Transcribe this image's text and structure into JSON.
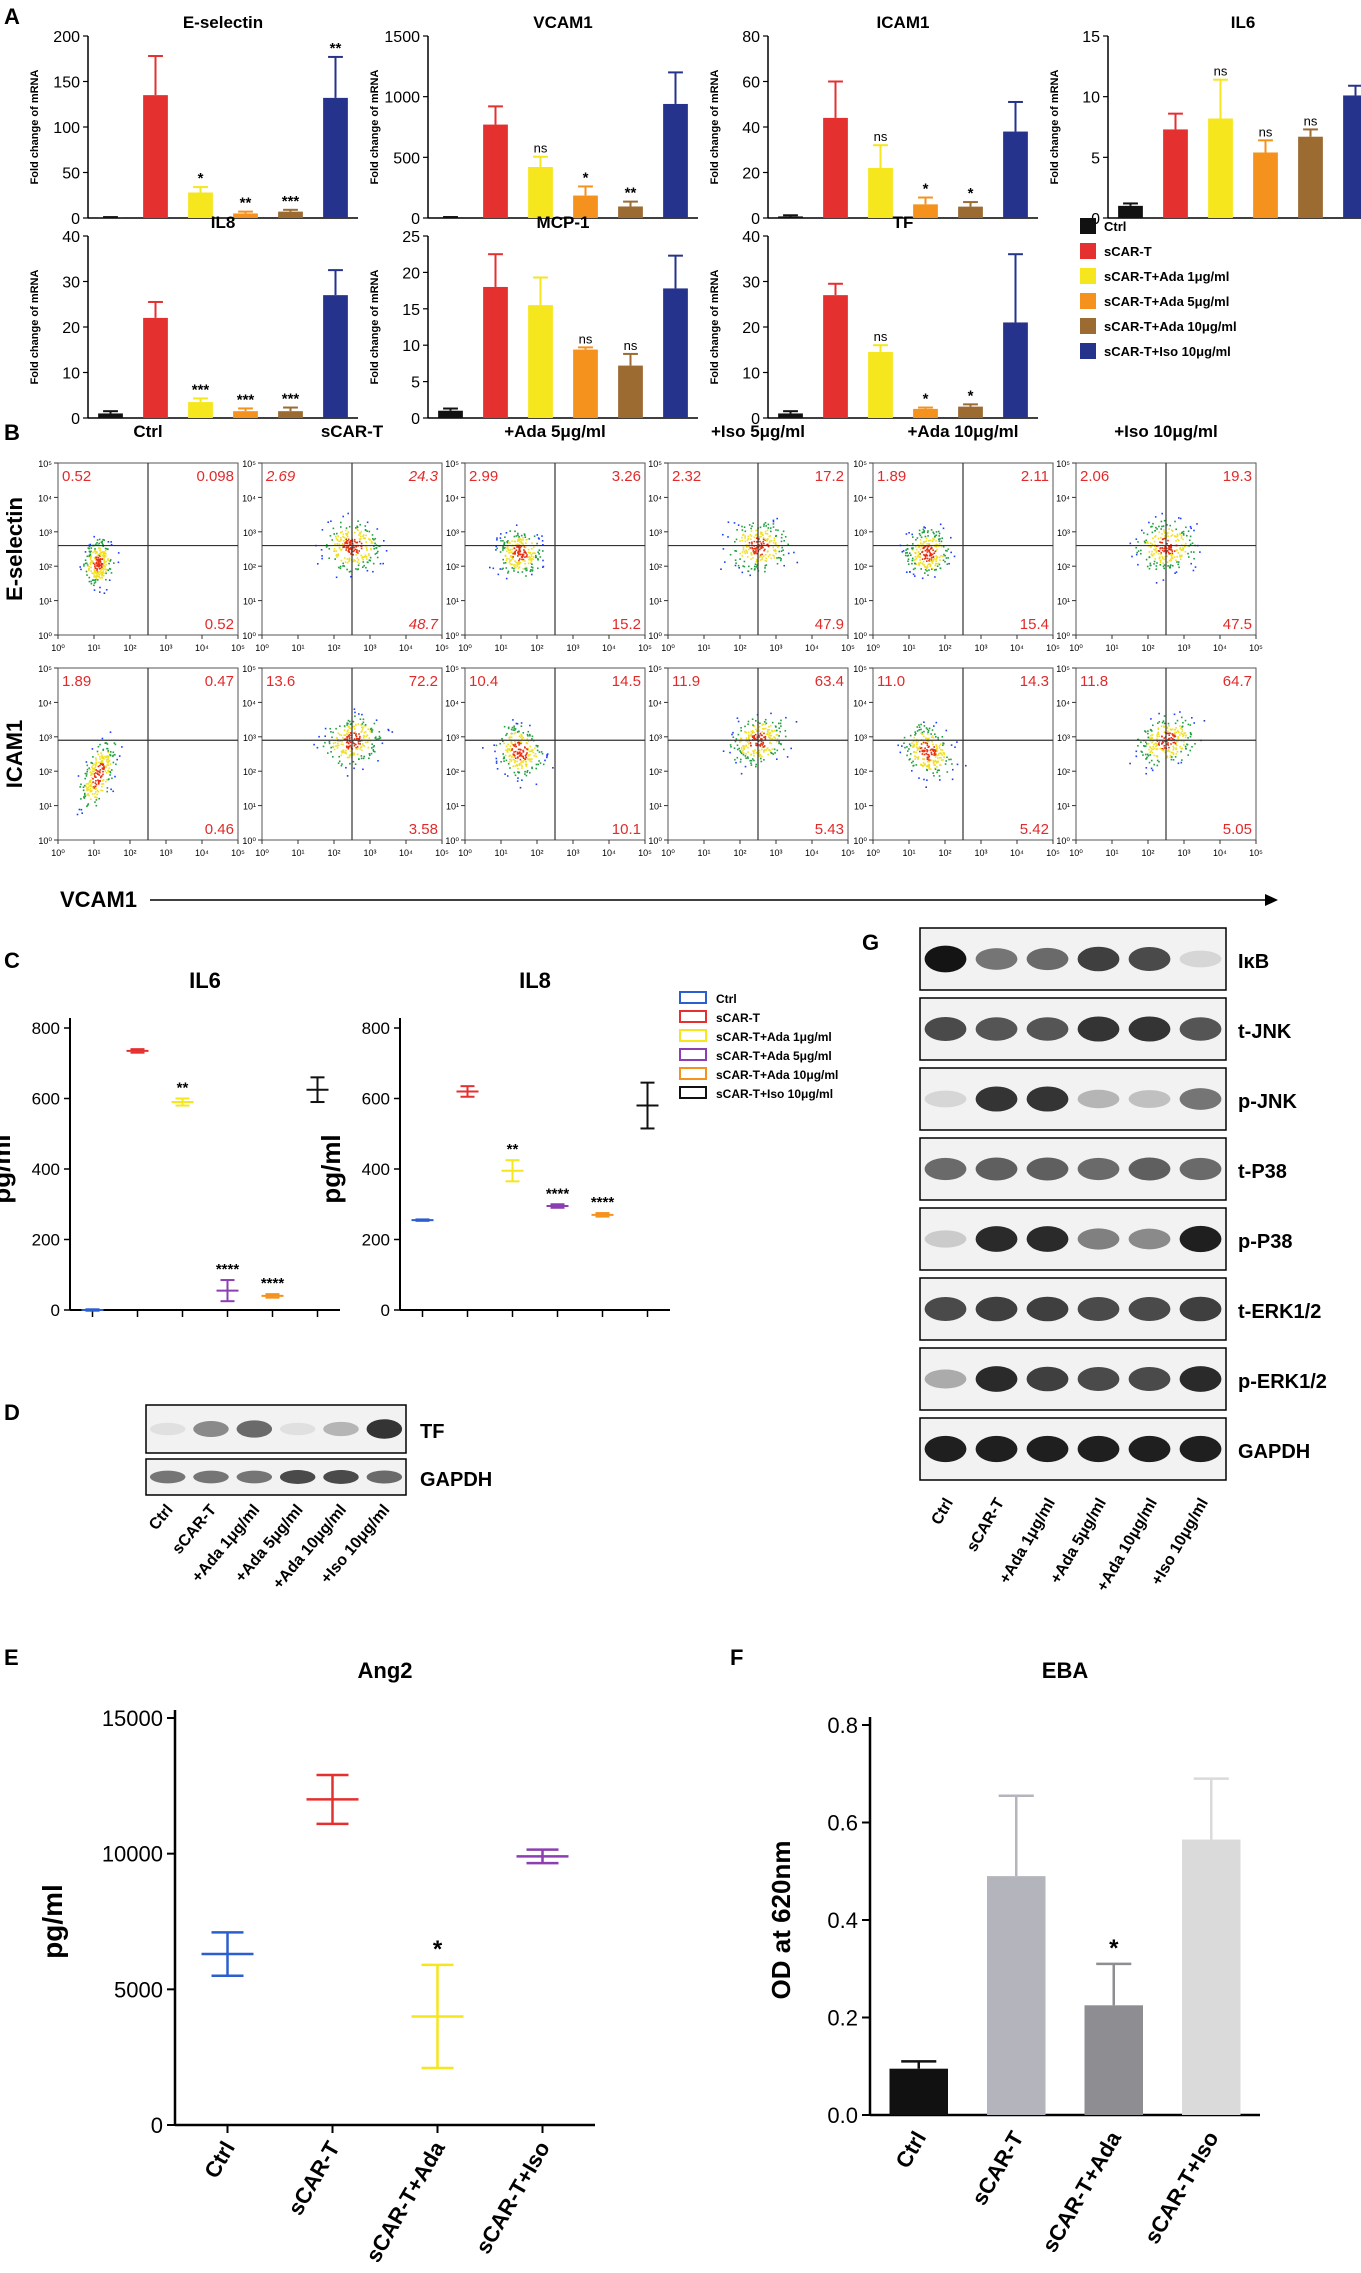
{
  "colors": {
    "ctrl": "#111111",
    "scar": "#e53030",
    "ada1": "#f5e61d",
    "ada5": "#f5921e",
    "ada10": "#9c6b32",
    "iso": "#26338c",
    "red_text": "#e12a2a"
  },
  "panel_labels": {
    "a": "A",
    "b": "B",
    "c": "C",
    "d": "D",
    "e": "E",
    "f": "F",
    "g": "G"
  },
  "panel_a": {
    "ylabel": "Fold change of mRNA",
    "groups": [
      "Ctrl",
      "sCAR-T",
      "sCAR-T+Ada 1μg/ml",
      "sCAR-T+Ada 5μg/ml",
      "sCAR-T+Ada 10μg/ml",
      "sCAR-T+Iso 10μg/ml"
    ],
    "charts": [
      {
        "title": "E-selectin",
        "ymax": 200,
        "ticks": [
          "0",
          "50",
          "100",
          "150",
          "200"
        ],
        "values": [
          0.5,
          135,
          28,
          5,
          7,
          132
        ],
        "errors": [
          0.5,
          43,
          6,
          2,
          2,
          45
        ],
        "sig": [
          "",
          "",
          "*",
          "**",
          "***",
          "**"
        ]
      },
      {
        "title": "VCAM1",
        "ymax": 1500,
        "ticks": [
          "0",
          "500",
          "1000",
          "1500"
        ],
        "values": [
          5,
          770,
          420,
          185,
          95,
          940
        ],
        "errors": [
          3,
          150,
          85,
          75,
          40,
          260
        ],
        "sig": [
          "",
          "",
          "ns",
          "*",
          "**",
          ""
        ]
      },
      {
        "title": "ICAM1",
        "ymax": 80,
        "ticks": [
          "0",
          "20",
          "40",
          "60",
          "80"
        ],
        "values": [
          0.7,
          44,
          22,
          6,
          5,
          38
        ],
        "errors": [
          0.5,
          16,
          10,
          3,
          2,
          13
        ],
        "sig": [
          "",
          "",
          "ns",
          "*",
          "*",
          ""
        ]
      },
      {
        "title": "IL6",
        "ymax": 15,
        "ticks": [
          "0",
          "5",
          "10",
          "15"
        ],
        "values": [
          1,
          7.3,
          8.2,
          5.4,
          6.7,
          10.1
        ],
        "errors": [
          0.2,
          1.3,
          3.2,
          1,
          0.6,
          0.8
        ],
        "sig": [
          "",
          "",
          "ns",
          "ns",
          "ns",
          ""
        ]
      },
      {
        "title": "IL8",
        "ymax": 40,
        "ticks": [
          "0",
          "10",
          "20",
          "30",
          "40"
        ],
        "values": [
          1,
          22,
          3.5,
          1.5,
          1.5,
          27
        ],
        "errors": [
          0.5,
          3.5,
          0.8,
          0.6,
          0.8,
          5.5
        ],
        "sig": [
          "",
          "",
          "***",
          "***",
          "***",
          ""
        ]
      },
      {
        "title": "MCP-1",
        "ymax": 25,
        "ticks": [
          "0",
          "5",
          "10",
          "15",
          "20",
          "25"
        ],
        "values": [
          1,
          18,
          15.5,
          9.4,
          7.2,
          17.8
        ],
        "errors": [
          0.3,
          4.5,
          3.8,
          0.3,
          1.6,
          4.5
        ],
        "sig": [
          "",
          "",
          "",
          "ns",
          "ns",
          ""
        ]
      },
      {
        "title": "TF",
        "ymax": 40,
        "ticks": [
          "0",
          "10",
          "20",
          "30",
          "40"
        ],
        "values": [
          1,
          27,
          14.5,
          2,
          2.5,
          21
        ],
        "errors": [
          0.5,
          2.5,
          1.5,
          0.3,
          0.5,
          15
        ],
        "sig": [
          "",
          "",
          "ns",
          "*",
          "*",
          ""
        ]
      }
    ],
    "legend": [
      "Ctrl",
      "sCAR-T",
      "sCAR-T+Ada 1μg/ml",
      "sCAR-T+Ada 5μg/ml",
      "sCAR-T+Ada 10μg/ml",
      "sCAR-T+Iso 10μg/ml"
    ]
  },
  "panel_b": {
    "columns": [
      "Ctrl",
      "sCAR-T",
      "+Ada 5μg/ml",
      "+Iso 5μg/ml",
      "+Ada 10μg/ml",
      "+Iso 10μg/ml"
    ],
    "row1_ylabel": "E-selectin",
    "row2_ylabel": "ICAM1",
    "xlabel": "VCAM1",
    "row1_quads": [
      [
        "0.52",
        "0.098",
        "0.52"
      ],
      [
        "2.69",
        "24.3",
        "48.7"
      ],
      [
        "2.99",
        "3.26",
        "15.2"
      ],
      [
        "2.32",
        "17.2",
        "47.9"
      ],
      [
        "1.89",
        "2.11",
        "15.4"
      ],
      [
        "2.06",
        "19.3",
        "47.5"
      ]
    ],
    "row2_quads": [
      [
        "1.89",
        "0.47",
        "0.46"
      ],
      [
        "13.6",
        "72.2",
        "3.58"
      ],
      [
        "10.4",
        "14.5",
        "10.1"
      ],
      [
        "11.9",
        "63.4",
        "5.43"
      ],
      [
        "11.0",
        "14.3",
        "5.42"
      ],
      [
        "11.8",
        "64.7",
        "5.05"
      ]
    ],
    "xticks": [
      "10⁰",
      "10¹",
      "10²",
      "10³",
      "10⁴",
      "10⁵"
    ],
    "yticks": [
      "10⁵",
      "10⁴",
      "10³",
      "10²",
      "10¹",
      "10⁰"
    ]
  },
  "panel_c": {
    "ylabel": "pg/ml",
    "il6": {
      "title": "IL6",
      "ticks": [
        "0",
        "200",
        "400",
        "600",
        "800"
      ],
      "means": [
        0,
        735,
        590,
        55,
        40,
        625
      ],
      "errors": [
        2,
        5,
        10,
        30,
        5,
        35
      ],
      "sig": [
        "",
        "",
        "**",
        "****",
        "****",
        ""
      ]
    },
    "il8": {
      "title": "IL8",
      "ticks": [
        "0",
        "200",
        "400",
        "600",
        "800"
      ],
      "means": [
        255,
        620,
        395,
        295,
        270,
        580
      ],
      "errors": [
        2,
        15,
        30,
        5,
        5,
        65
      ],
      "sig": [
        "",
        "",
        "**",
        "****",
        "****",
        ""
      ]
    },
    "legend": [
      "Ctrl",
      "sCAR-T",
      "sCAR-T+Ada 1μg/ml",
      "sCAR-T+Ada 5μg/ml",
      "sCAR-T+Ada 10μg/ml",
      "sCAR-T+Iso 10μg/ml"
    ],
    "legend_colors": [
      "#2b5fd0",
      "#e53030",
      "#f5e61d",
      "#8b3fb0",
      "#f5921e",
      "#111111"
    ]
  },
  "panel_d": {
    "bands": [
      "TF",
      "GAPDH"
    ],
    "lanes": [
      "Ctrl",
      "sCAR-T",
      "+Ada 1μg/ml",
      "+Ada 5μg/ml",
      "+Ada 10μg/ml",
      "+Iso 10μg/ml"
    ]
  },
  "panel_g": {
    "bands": [
      "IκB",
      "t-JNK",
      "p-JNK",
      "t-P38",
      "p-P38",
      "t-ERK1/2",
      "p-ERK1/2",
      "GAPDH"
    ],
    "lanes": [
      "Ctrl",
      "sCAR-T",
      "+Ada 1μg/ml",
      "+Ada 5μg/ml",
      "+Ada 10μg/ml",
      "+Iso 10μg/ml"
    ]
  },
  "chart_data": [
    {
      "type": "scatter",
      "title": "Ang2",
      "ylabel": "pg/ml",
      "ylim": [
        0,
        15000
      ],
      "ticks": [
        "0",
        "5000",
        "10000",
        "15000"
      ],
      "categories": [
        "Ctrl",
        "sCAR-T",
        "sCAR-T+Ada",
        "sCAR-T+Iso"
      ],
      "means": [
        6300,
        12000,
        4000,
        9900
      ],
      "errors": [
        800,
        900,
        1900,
        250
      ],
      "sig": [
        "",
        "",
        "*",
        ""
      ],
      "colors": [
        "#2b5fd0",
        "#e53030",
        "#f5e61d",
        "#8b3fb0"
      ]
    },
    {
      "type": "bar",
      "title": "EBA",
      "ylabel": "OD at 620nm",
      "ylim": [
        0,
        0.8
      ],
      "ticks": [
        "0.0",
        "0.2",
        "0.4",
        "0.6",
        "0.8"
      ],
      "categories": [
        "Ctrl",
        "sCAR-T",
        "sCAR-T+Ada",
        "sCAR-T+Iso"
      ],
      "values": [
        0.095,
        0.49,
        0.225,
        0.565
      ],
      "errors": [
        0.015,
        0.165,
        0.085,
        0.125
      ],
      "sig": [
        "",
        "",
        "*",
        ""
      ],
      "colors": [
        "#111111",
        "#b4b4bc",
        "#8d8d92",
        "#dadada"
      ]
    }
  ]
}
